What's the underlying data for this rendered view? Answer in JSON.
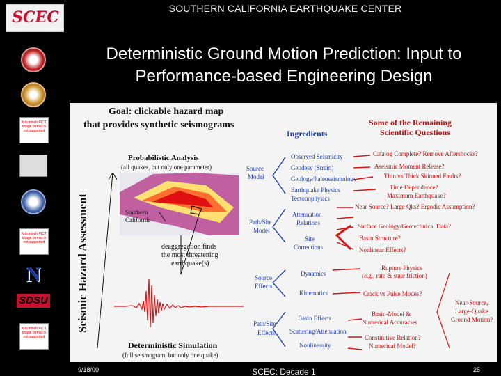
{
  "header": {
    "title": "SOUTHERN CALIFORNIA EARTHQUAKE CENTER",
    "logo_text": "SCEC"
  },
  "sidebar": {
    "missing_pict_text": "Macintosh PICT image format is not supported",
    "nd_text": "N",
    "sdsu_text": "SDSU"
  },
  "slide": {
    "title_line1": "Deterministic Ground Motion Prediction: Input to",
    "title_line2": "Performance-based Engineering Design"
  },
  "figure": {
    "goal_line1": "Goal: clickable hazard map",
    "goal_line2": "that provides synthetic seismograms",
    "vertical_label": "Seismic Hazard Assessment",
    "ingredients_title": "Ingredients",
    "questions_line1": "Some of the Remaining",
    "questions_line2": "Scientific Questions",
    "prob_title": "Probabilistic Analysis",
    "prob_sub": "(all quakes, but only one parameter)",
    "socal_label_1": "Southern",
    "socal_label_2": "California",
    "deagg_1": "deaggregation finds",
    "deagg_2": "the most threatening",
    "deagg_3": "earthquake(s)",
    "det_title": "Deterministic Simulation",
    "det_sub": "(full seismogram, but only one quake)",
    "source_model": [
      "Source",
      "Model"
    ],
    "path_site_model": [
      "Path/Site",
      "Model"
    ],
    "source_effects": [
      "Source",
      "Effects"
    ],
    "path_site_effects": [
      "Path/Site",
      "Effects"
    ],
    "ingredients_source_model": [
      "Observed Seismicity",
      "Geodesy (Strain)",
      "Geology/Paleoseismology",
      "Earthquake Physics",
      "Tectonophysics"
    ],
    "ingredients_path_model": [
      "Attenuation",
      "Relations",
      "Site",
      "Corrections"
    ],
    "ingredients_source_effects": [
      "Dynamics",
      "Kinematics"
    ],
    "ingredients_path_effects": [
      "Basin Effects",
      "Scattering/Attenuation",
      "Nonlinearity"
    ],
    "questions": [
      "Catalog Complete? Remove Aftershocks?",
      "Aseismic Moment Release?",
      "Thin vs Thick Skinned Faults?",
      "Time Dependence?",
      "Maximum Earthquake?",
      "Near Source? Large Qks? Ergodic Assumption?",
      "Surface Geology/Geotechnical Data?",
      "Basin Structure?",
      "Nonlinear Effects?",
      "Rupture Physics",
      "(e.g., rate & state friction)",
      "Crack vs Pulse Modes?",
      "Basin-Model &",
      "Numerical Accuracies",
      "Constitutive Relation?",
      "Numerical Model?",
      "Near-Source,",
      "Large-Quake",
      "Ground Motion?"
    ]
  },
  "footer": {
    "date": "9/18/00",
    "center": "SCEC: Decade 1",
    "page": "25"
  },
  "colors": {
    "red": "#d01818",
    "blue": "#2040b0",
    "background": "#000000"
  }
}
